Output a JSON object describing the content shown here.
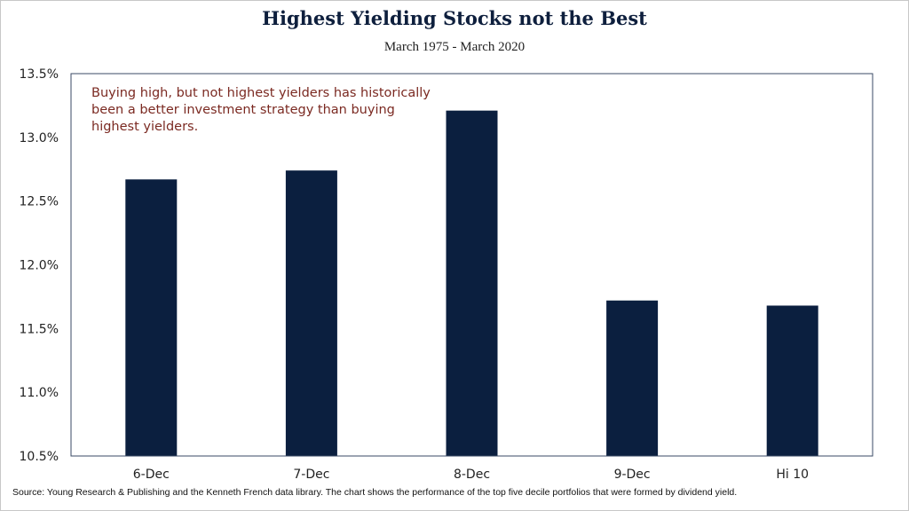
{
  "chart_data": {
    "type": "bar",
    "title": "Highest Yielding Stocks not the Best",
    "subtitle": "March 1975 - March 2020",
    "categories": [
      "6-Dec",
      "7-Dec",
      "8-Dec",
      "9-Dec",
      "Hi 10"
    ],
    "values": [
      12.67,
      12.74,
      13.21,
      11.72,
      11.68
    ],
    "ylim": [
      10.5,
      13.5
    ],
    "yticks": [
      10.5,
      11.0,
      11.5,
      12.0,
      12.5,
      13.0,
      13.5
    ],
    "ytick_labels": [
      "10.5%",
      "11.0%",
      "11.5%",
      "12.0%",
      "12.5%",
      "13.0%",
      "13.5%"
    ],
    "xlabel": "",
    "ylabel": "",
    "grid": false,
    "bar_color": "#0b1f3f",
    "annotation": "Buying high, but not highest yielders has historically been a better investment strategy than buying highest yielders.",
    "annotation_color": "#7b2a22",
    "source": "Source: Young Research & Publishing and the Kenneth French data library. The chart shows the performance of the top five decile portfolios that were formed by dividend yield."
  }
}
